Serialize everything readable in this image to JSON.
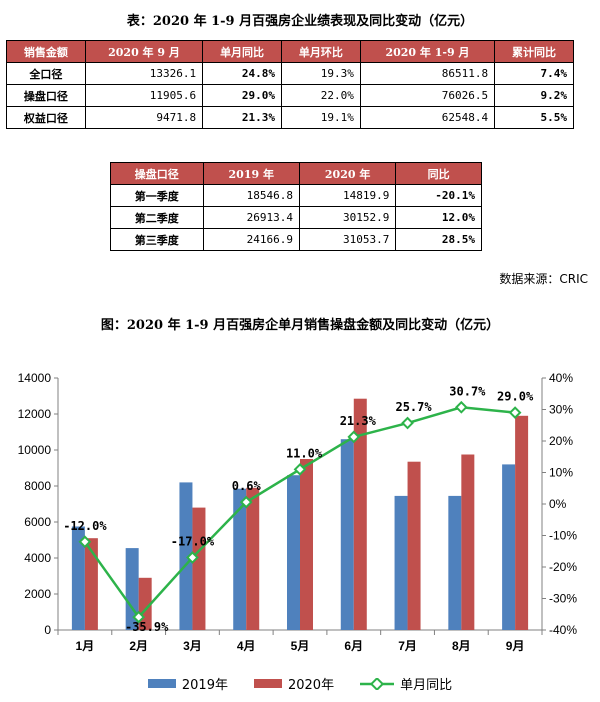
{
  "table1": {
    "caption": "表：2020 年 1-9 月百强房企业绩表现及同比变动（亿元）",
    "headers": [
      "销售金额",
      "2020 年 9 月",
      "单月同比",
      "单月环比",
      "2020 年 1-9 月",
      "累计同比"
    ],
    "rows": [
      {
        "label": "全口径",
        "sep": "13326.1",
        "yoy": "24.8%",
        "mom": "19.3%",
        "ytd": "86511.8",
        "cum": "7.4%"
      },
      {
        "label": "操盘口径",
        "sep": "11905.6",
        "yoy": "29.0%",
        "mom": "22.0%",
        "ytd": "76026.5",
        "cum": "9.2%"
      },
      {
        "label": "权益口径",
        "sep": "9471.8",
        "yoy": "21.3%",
        "mom": "19.1%",
        "ytd": "62548.4",
        "cum": "5.5%"
      }
    ]
  },
  "table2": {
    "headers": [
      "操盘口径",
      "2019 年",
      "2020 年",
      "同比"
    ],
    "rows": [
      {
        "label": "第一季度",
        "y2019": "18546.8",
        "y2020": "14819.9",
        "yoy": "-20.1%"
      },
      {
        "label": "第二季度",
        "y2019": "26913.4",
        "y2020": "30152.9",
        "yoy": "12.0%"
      },
      {
        "label": "第三季度",
        "y2019": "24166.9",
        "y2020": "31053.7",
        "yoy": "28.5%"
      }
    ]
  },
  "source": "数据来源：CRIC",
  "chart_data": {
    "type": "bar",
    "title": "图：2020 年 1-9 月百强房企单月销售操盘金额及同比变动（亿元）",
    "categories": [
      "1月",
      "2月",
      "3月",
      "4月",
      "5月",
      "6月",
      "7月",
      "8月",
      "9月"
    ],
    "series": [
      {
        "name": "2019年",
        "type": "bar",
        "axis": "left",
        "color": "#4f81bd",
        "values": [
          5750,
          4550,
          8200,
          7850,
          8600,
          10600,
          7450,
          7450,
          9200
        ]
      },
      {
        "name": "2020年",
        "type": "bar",
        "axis": "left",
        "color": "#c0504d",
        "values": [
          5100,
          2900,
          6800,
          7900,
          9500,
          12850,
          9350,
          9750,
          11900
        ]
      },
      {
        "name": "单月同比",
        "type": "line",
        "axis": "right",
        "color": "#2db34a",
        "values": [
          -12.0,
          -35.9,
          -17.0,
          0.6,
          11.0,
          21.3,
          25.7,
          30.7,
          29.0
        ],
        "labels": [
          "-12.0%",
          "-35.9%",
          "-17.0%",
          "0.6%",
          "11.0%",
          "21.3%",
          "25.7%",
          "30.7%",
          "29.0%"
        ]
      }
    ],
    "ylim_left": [
      0,
      14000
    ],
    "yticks_left": [
      "0",
      "2000",
      "4000",
      "6000",
      "8000",
      "10000",
      "12000",
      "14000"
    ],
    "ylim_right": [
      -40,
      40
    ],
    "yticks_right": [
      "-40%",
      "-30%",
      "-20%",
      "-10%",
      "0%",
      "10%",
      "20%",
      "30%",
      "40%"
    ],
    "legend_position": "bottom",
    "grid": false
  }
}
